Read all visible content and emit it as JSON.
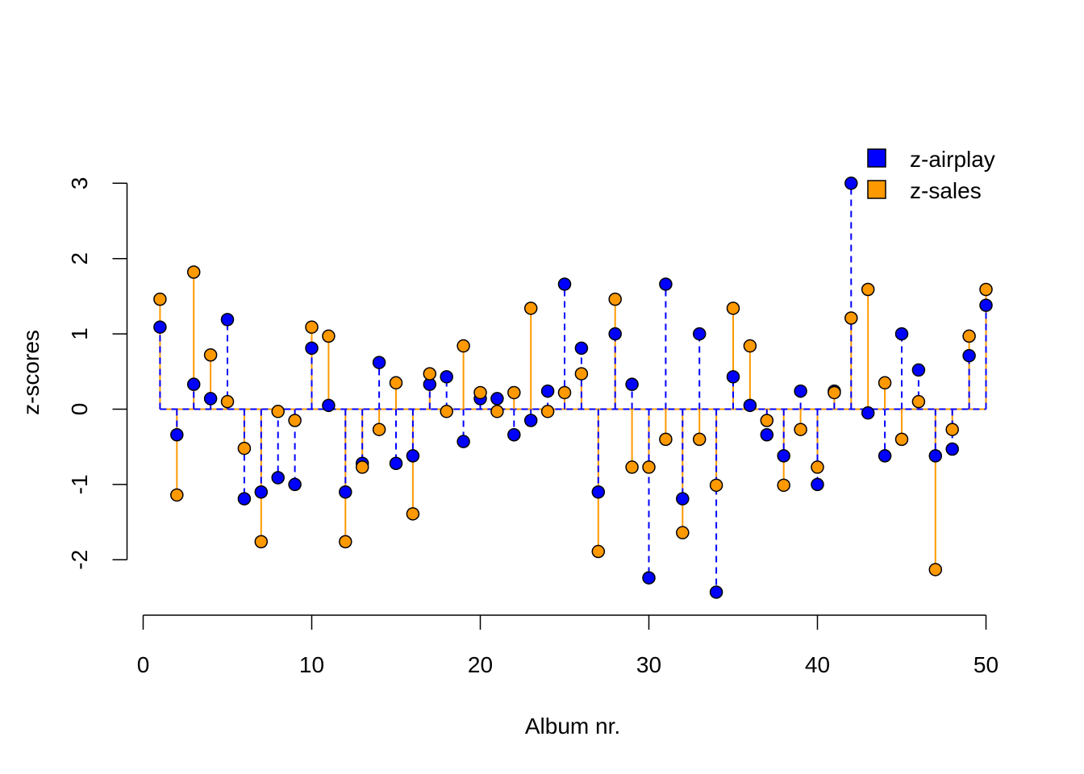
{
  "chart_data": {
    "type": "scatter",
    "style": "stem",
    "title": "",
    "xlabel": "Album nr.",
    "ylabel": "z-scores",
    "xlim": [
      0,
      50
    ],
    "ylim": [
      -2.5,
      3
    ],
    "xticks": [
      0,
      10,
      20,
      30,
      40,
      50
    ],
    "xtick_labels": [
      "0",
      "10",
      "20",
      "30",
      "40",
      "50"
    ],
    "yticks": [
      -2,
      -1,
      0,
      1,
      2,
      3
    ],
    "ytick_labels": [
      "-2",
      "-1",
      "0",
      "1",
      "2",
      "3"
    ],
    "grid": false,
    "legend_position": "top-right",
    "x": [
      1,
      2,
      3,
      4,
      5,
      6,
      7,
      8,
      9,
      10,
      11,
      12,
      13,
      14,
      15,
      16,
      17,
      18,
      19,
      20,
      21,
      22,
      23,
      24,
      25,
      26,
      27,
      28,
      29,
      30,
      31,
      32,
      33,
      34,
      35,
      36,
      37,
      38,
      39,
      40,
      41,
      42,
      43,
      44,
      45,
      46,
      47,
      48,
      49,
      50
    ],
    "series": [
      {
        "name": "z-airplay",
        "color": "#0000ff",
        "line_style": "dashed",
        "values": [
          1.09,
          -0.34,
          0.33,
          0.14,
          1.19,
          -1.19,
          -1.1,
          -0.91,
          -1.0,
          0.81,
          0.05,
          -1.1,
          -0.72,
          0.62,
          -0.72,
          -0.62,
          0.33,
          0.43,
          -0.43,
          0.14,
          0.14,
          -0.34,
          -0.15,
          0.24,
          1.66,
          0.81,
          -1.1,
          1.0,
          0.33,
          -2.24,
          1.66,
          -1.19,
          1.0,
          -2.43,
          0.43,
          0.05,
          -0.34,
          -0.62,
          0.24,
          -1.0,
          0.24,
          3.0,
          -0.05,
          -0.62,
          1.0,
          0.52,
          -0.62,
          -0.53,
          0.71,
          1.38
        ]
      },
      {
        "name": "z-sales",
        "color": "#ff9900",
        "line_style": "solid",
        "values": [
          1.46,
          -1.14,
          1.82,
          0.72,
          0.1,
          -0.52,
          -1.76,
          -0.03,
          -0.15,
          1.09,
          0.97,
          -1.76,
          -0.77,
          -0.27,
          0.35,
          -1.39,
          0.47,
          -0.03,
          0.84,
          0.22,
          -0.03,
          0.22,
          1.34,
          -0.03,
          0.22,
          0.47,
          -1.89,
          1.46,
          -0.77,
          -0.77,
          -0.4,
          -1.64,
          -0.4,
          -1.01,
          1.34,
          0.84,
          -0.15,
          -1.01,
          -0.27,
          -0.77,
          0.22,
          1.21,
          1.59,
          0.35,
          -0.4,
          0.1,
          -2.13,
          -0.27,
          0.97,
          1.59
        ]
      }
    ]
  }
}
